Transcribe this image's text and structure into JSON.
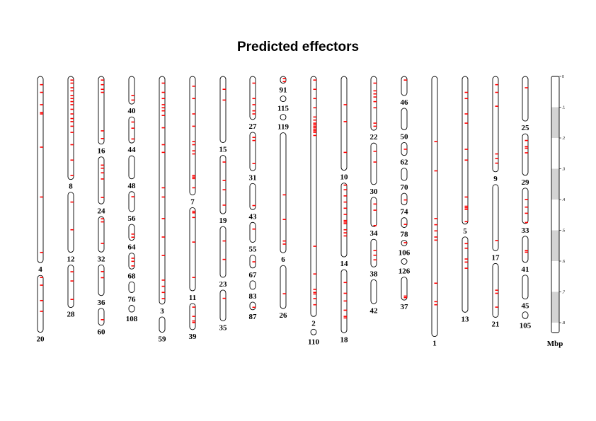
{
  "title": "Predicted effectors",
  "scale_unit": "Mbp",
  "scale_ticks": [
    "0",
    ".1",
    ".2",
    ".3",
    ".4",
    ".5",
    ".6",
    ".7",
    ".8"
  ],
  "colors": {
    "marker": "#ff0000",
    "outline": "#000000",
    "scale_band": "#d3d3d3"
  },
  "chart_data": {
    "type": "ideogram",
    "units": "Mbp",
    "contigs": [
      {
        "id": "4",
        "length": 0.605,
        "marks": [
          0.025,
          0.05,
          0.09,
          0.115,
          0.12,
          0.228,
          0.39,
          0.57
        ]
      },
      {
        "id": "20",
        "length": 0.185,
        "marks": [
          0.005,
          0.03,
          0.08,
          0.115
        ]
      },
      {
        "id": "8",
        "length": 0.335,
        "marks": [
          0.01,
          0.02,
          0.035,
          0.045,
          0.06,
          0.07,
          0.08,
          0.09,
          0.105,
          0.12,
          0.135,
          0.145,
          0.16,
          0.18,
          0.22,
          0.27,
          0.32
        ]
      },
      {
        "id": "12",
        "length": 0.195,
        "marks": [
          0.03,
          0.12,
          0.22
        ]
      },
      {
        "id": "28",
        "length": 0.138,
        "marks": [
          0.02,
          0.05,
          0.11
        ]
      },
      {
        "id": "16",
        "length": 0.22,
        "marks": [
          0.01,
          0.025,
          0.04,
          0.05,
          0.175,
          0.2
        ]
      },
      {
        "id": "24",
        "length": 0.153,
        "marks": [
          0.025,
          0.035,
          0.05,
          0.07,
          0.13
        ]
      },
      {
        "id": "32",
        "length": 0.115,
        "marks": [
          0.005,
          0.015,
          0.085
        ]
      },
      {
        "id": "36",
        "length": 0.1,
        "marks": [
          0.02,
          0.04
        ]
      },
      {
        "id": "60",
        "length": 0.055,
        "marks": [
          0.035
        ]
      },
      {
        "id": "40",
        "length": 0.09,
        "marks": [
          0.06,
          0.075
        ]
      },
      {
        "id": "44",
        "length": 0.085,
        "marks": [
          0.015,
          0.035,
          0.07
        ]
      },
      {
        "id": "48",
        "length": 0.075,
        "marks": []
      },
      {
        "id": "56",
        "length": 0.065,
        "marks": [
          0.015
        ]
      },
      {
        "id": "64",
        "length": 0.052,
        "marks": [
          0.03,
          0.04
        ]
      },
      {
        "id": "68",
        "length": 0.052,
        "marks": [
          0.015,
          0.025,
          0.04
        ]
      },
      {
        "id": "76",
        "length": 0.035,
        "marks": []
      },
      {
        "id": "108",
        "length": 0.022,
        "marks": []
      },
      {
        "id": "3",
        "length": 0.74,
        "marks": [
          0.02,
          0.05,
          0.07,
          0.09,
          0.1,
          0.11,
          0.125,
          0.165,
          0.22,
          0.245,
          0.36,
          0.39,
          0.46,
          0.52,
          0.58,
          0.66,
          0.68,
          0.7,
          0.72
        ]
      },
      {
        "id": "59",
        "length": 0.05,
        "marks": []
      },
      {
        "id": "7",
        "length": 0.385,
        "marks": [
          0.03,
          0.07,
          0.12,
          0.16,
          0.21,
          0.22,
          0.24,
          0.25,
          0.32,
          0.325,
          0.33,
          0.36
        ]
      },
      {
        "id": "11",
        "length": 0.27,
        "marks": [
          0.01,
          0.015,
          0.03,
          0.11,
          0.225
        ]
      },
      {
        "id": "39",
        "length": 0.085,
        "marks": [
          0.01,
          0.04,
          0.055,
          0.06
        ]
      },
      {
        "id": "15",
        "length": 0.215,
        "marks": [
          0.04,
          0.075
        ]
      },
      {
        "id": "19",
        "length": 0.19,
        "marks": [
          0.02,
          0.08,
          0.11,
          0.16
        ]
      },
      {
        "id": "23",
        "length": 0.165,
        "marks": [
          0.045,
          0.105
        ]
      },
      {
        "id": "35",
        "length": 0.1,
        "marks": [
          0.025
        ]
      },
      {
        "id": "27",
        "length": 0.14,
        "marks": [
          0.02,
          0.07,
          0.09,
          0.11,
          0.12
        ]
      },
      {
        "id": "31",
        "length": 0.125,
        "marks": [
          0.015,
          0.025,
          0.1
        ]
      },
      {
        "id": "43",
        "length": 0.085,
        "marks": [
          0.07
        ]
      },
      {
        "id": "55",
        "length": 0.065,
        "marks": [
          0.02
        ]
      },
      {
        "id": "67",
        "length": 0.042,
        "marks": [
          0.02
        ]
      },
      {
        "id": "83",
        "length": 0.028,
        "marks": []
      },
      {
        "id": "87",
        "length": 0.025,
        "marks": [
          0.015
        ]
      },
      {
        "id": "91",
        "length": 0.022,
        "marks": [
          0.005,
          0.015
        ]
      },
      {
        "id": "115",
        "length": 0.015,
        "marks": []
      },
      {
        "id": "119",
        "length": 0.015,
        "marks": []
      },
      {
        "id": "6",
        "length": 0.39,
        "marks": [
          0.2,
          0.28,
          0.35,
          0.36
        ]
      },
      {
        "id": "26",
        "length": 0.14,
        "marks": [
          0.09
        ]
      },
      {
        "id": "2",
        "length": 0.78,
        "marks": [
          0.01,
          0.04,
          0.07,
          0.1,
          0.13,
          0.14,
          0.15,
          0.155,
          0.16,
          0.165,
          0.17,
          0.175,
          0.18,
          0.19,
          0.55,
          0.64,
          0.69,
          0.7,
          0.705,
          0.72,
          0.74
        ]
      },
      {
        "id": "110",
        "length": 0.015,
        "marks": []
      },
      {
        "id": "10",
        "length": 0.305,
        "marks": [
          0.09,
          0.145,
          0.245
        ]
      },
      {
        "id": "14",
        "length": 0.24,
        "marks": [
          0.005,
          0.02,
          0.04,
          0.06,
          0.08,
          0.1,
          0.12,
          0.125,
          0.13,
          0.15,
          0.16,
          0.17
        ]
      },
      {
        "id": "18",
        "length": 0.205,
        "marks": [
          0.04,
          0.075,
          0.1,
          0.13,
          0.15,
          0.155
        ]
      },
      {
        "id": "22",
        "length": 0.175,
        "marks": [
          0.02,
          0.045,
          0.055,
          0.065,
          0.08,
          0.1,
          0.15,
          0.16
        ]
      },
      {
        "id": "30",
        "length": 0.135,
        "marks": [
          0.025,
          0.06
        ]
      },
      {
        "id": "34",
        "length": 0.095,
        "marks": [
          0.02,
          0.04,
          0.09
        ]
      },
      {
        "id": "38",
        "length": 0.09,
        "marks": [
          0.035,
          0.05,
          0.065
        ]
      },
      {
        "id": "42",
        "length": 0.078,
        "marks": []
      },
      {
        "id": "46",
        "length": 0.062,
        "marks": [
          0.01
        ]
      },
      {
        "id": "50",
        "length": 0.07,
        "marks": []
      },
      {
        "id": "62",
        "length": 0.042,
        "marks": [
          0.02
        ]
      },
      {
        "id": "70",
        "length": 0.04,
        "marks": []
      },
      {
        "id": "74",
        "length": 0.038,
        "marks": [
          0.02
        ]
      },
      {
        "id": "78",
        "length": 0.032,
        "marks": [
          0.02
        ]
      },
      {
        "id": "106",
        "length": 0.015,
        "marks": [
          0.006
        ]
      },
      {
        "id": "126",
        "length": 0.012,
        "marks": []
      },
      {
        "id": "37",
        "length": 0.075,
        "marks": [
          0.06,
          0.065
        ]
      },
      {
        "id": "1",
        "length": 0.845,
        "marks": [
          0.21,
          0.305,
          0.46,
          0.48,
          0.5,
          0.52,
          0.53,
          0.67,
          0.73,
          0.74
        ]
      },
      {
        "id": "5",
        "length": 0.48,
        "marks": [
          0.05,
          0.07,
          0.12,
          0.15,
          0.235,
          0.27,
          0.39,
          0.42,
          0.425,
          0.43,
          0.47
        ]
      },
      {
        "id": "13",
        "length": 0.245,
        "marks": [
          0.02,
          0.035,
          0.07,
          0.08,
          0.1
        ]
      },
      {
        "id": "9",
        "length": 0.31,
        "marks": [
          0.025,
          0.05,
          0.095,
          0.25,
          0.265,
          0.28
        ]
      },
      {
        "id": "17",
        "length": 0.215,
        "marks": [
          0.18
        ]
      },
      {
        "id": "21",
        "length": 0.175,
        "marks": [
          0.085,
          0.095,
          0.14
        ]
      },
      {
        "id": "25",
        "length": 0.145,
        "marks": [
          0.035
        ]
      },
      {
        "id": "29",
        "length": 0.135,
        "marks": [
          0.02,
          0.04,
          0.045,
          0.06
        ]
      },
      {
        "id": "33",
        "length": 0.115,
        "marks": [
          0.035,
          0.06,
          0.08,
          0.11
        ]
      },
      {
        "id": "41",
        "length": 0.085,
        "marks": [
          0.045,
          0.05
        ]
      },
      {
        "id": "45",
        "length": 0.078,
        "marks": []
      },
      {
        "id": "105",
        "length": 0.022,
        "marks": []
      }
    ]
  }
}
